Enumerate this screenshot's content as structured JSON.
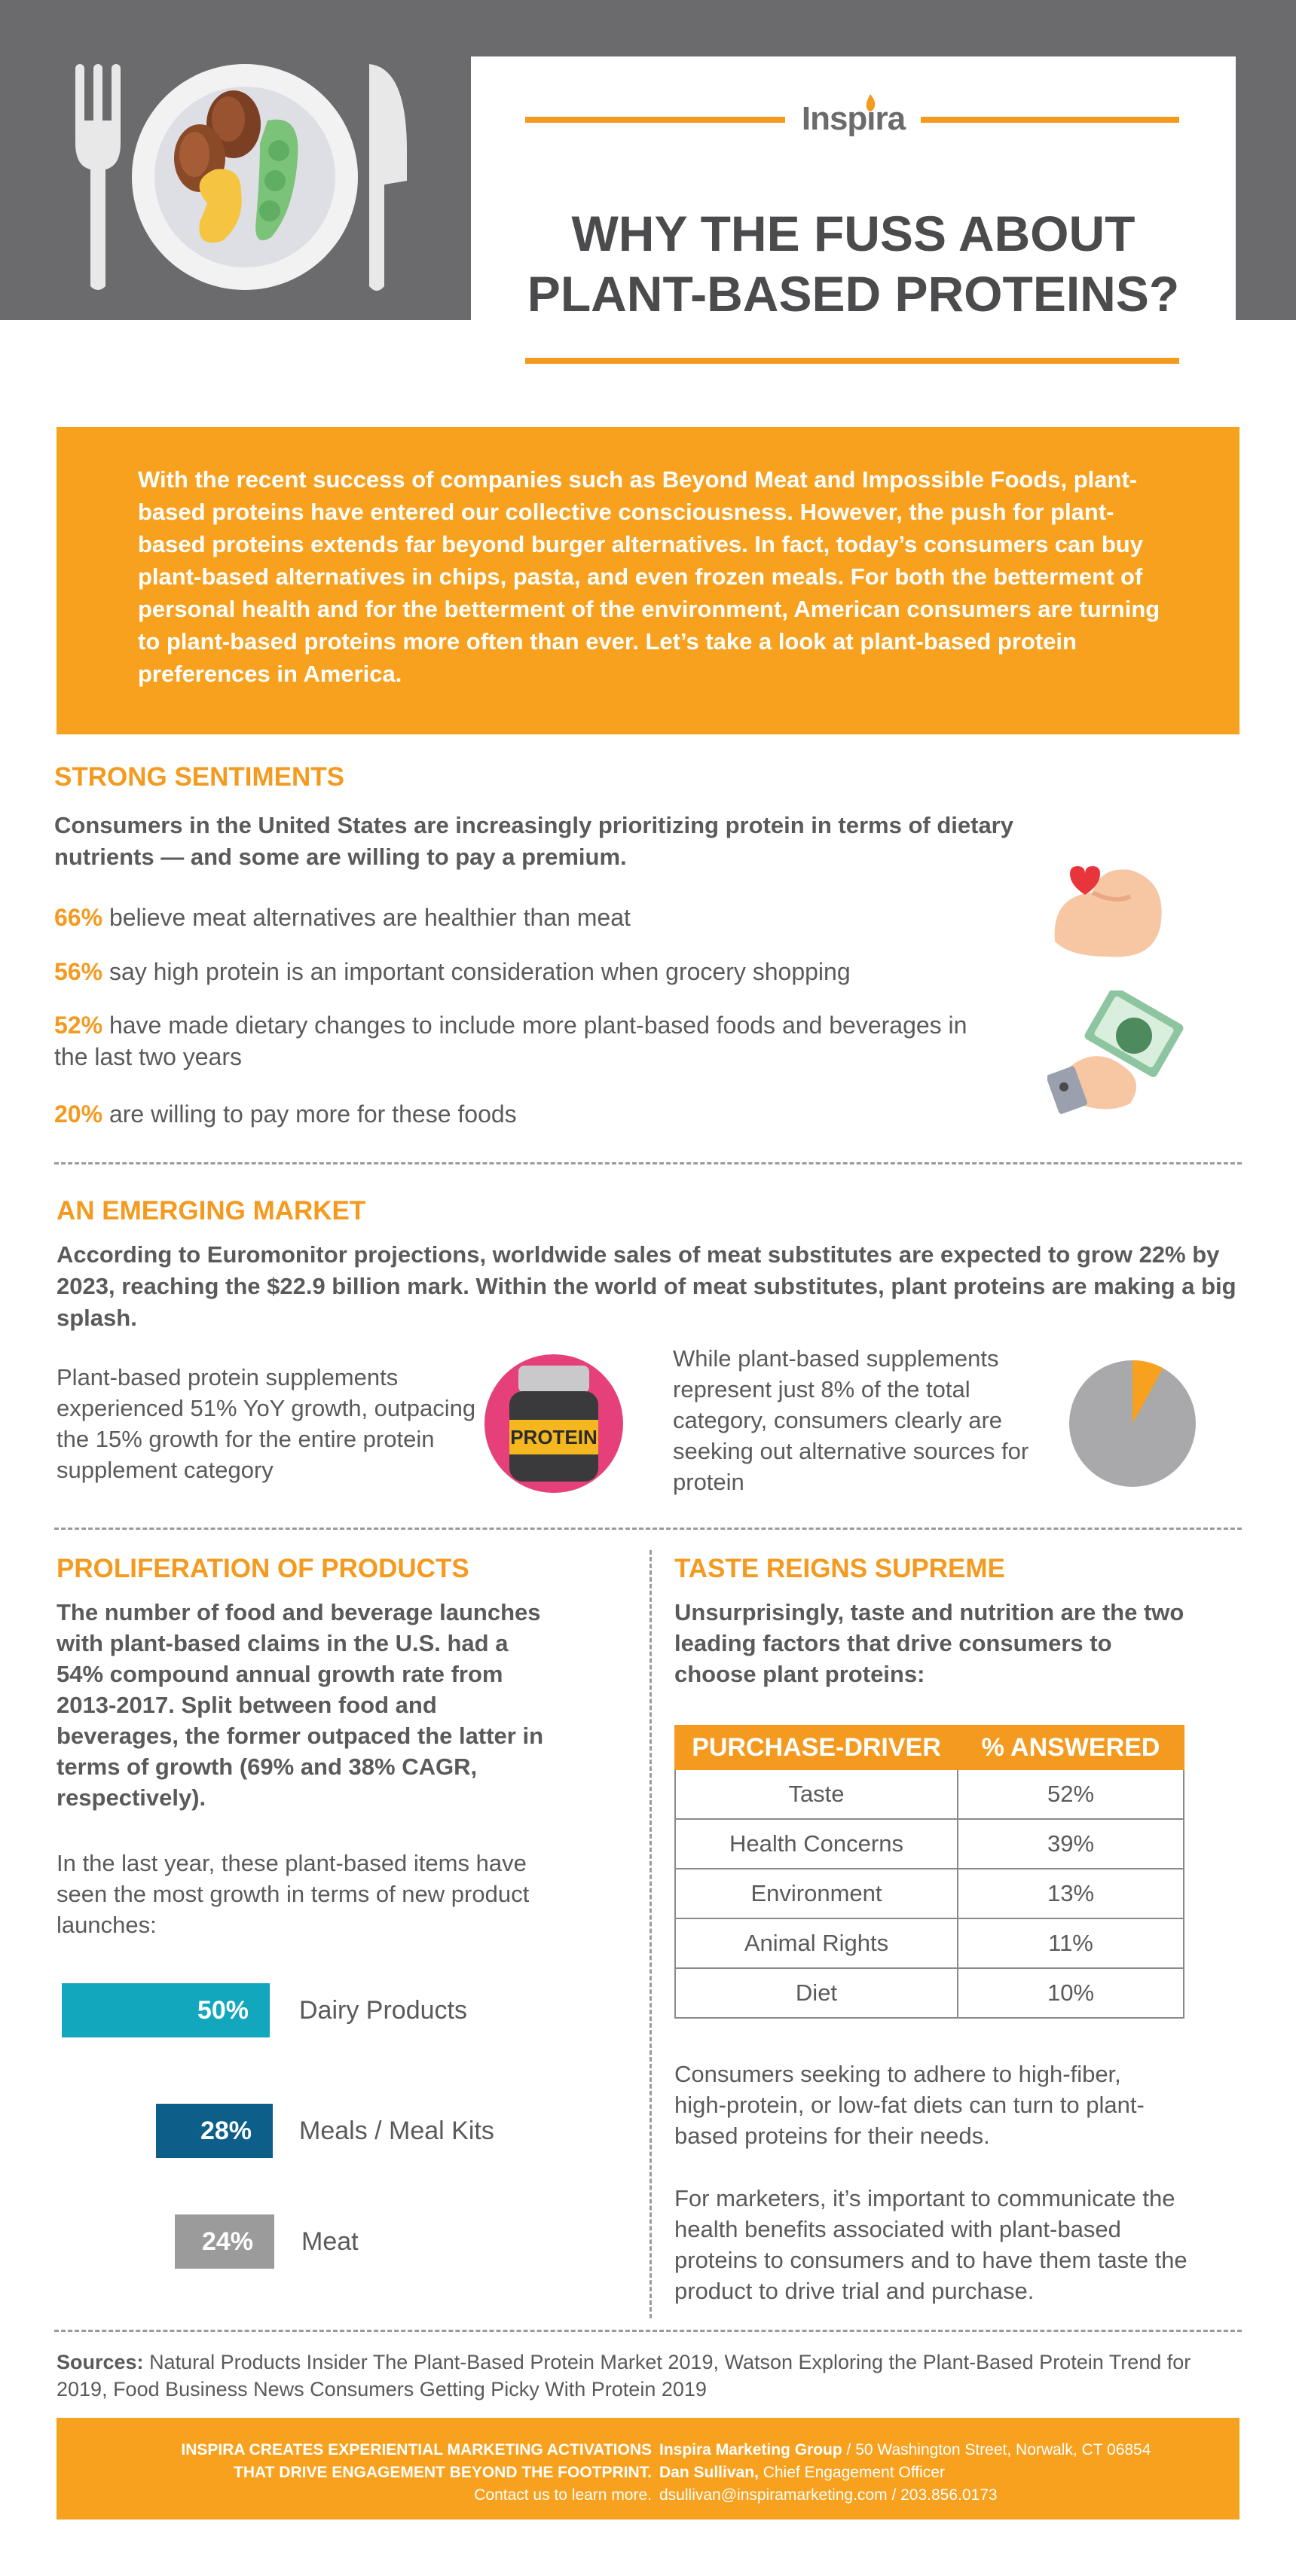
{
  "brand": {
    "name": "Inspira"
  },
  "title": "WHY THE FUSS ABOUT PLANT-BASED PROTEINS?",
  "intro": "With the recent success of companies such as Beyond Meat and Impossible Foods, plant-based proteins have entered our collective consciousness. However, the push for plant-based proteins extends far beyond burger alternatives. In fact, today’s consumers can buy plant-based alternatives in chips, pasta, and even frozen meals. For both the betterment of personal health and for the betterment of the environment, American consumers are turning to plant-based proteins more often than ever. Let’s take a look at plant-based protein preferences in America.",
  "sentiments": {
    "heading": "STRONG SENTIMENTS",
    "lead": "Consumers in the United States are increasingly prioritizing protein in terms of dietary nutrients — and some are willing to pay a premium.",
    "stats": [
      {
        "pct": "66%",
        "text": "believe meat alternatives are healthier than meat"
      },
      {
        "pct": "56%",
        "text": "say high protein is an important consideration when grocery shopping"
      },
      {
        "pct": "52%",
        "text": "have made dietary changes to include more plant-based foods and beverages in the last two years"
      },
      {
        "pct": "20%",
        "text": "are willing to pay more for these foods"
      }
    ]
  },
  "market": {
    "heading": "AN EMERGING MARKET",
    "lead": "According to Euromonitor projections, worldwide sales of meat substitutes are expected to grow 22% by 2023, reaching the $22.9 billion mark. Within the world of meat substitutes, plant proteins are making a big splash.",
    "left_text": "Plant-based protein supplements experienced 51% YoY growth, outpacing the 15% growth for the entire protein supplement category",
    "jar_label": "PROTEIN",
    "right_text": "While plant-based supplements represent just 8% of the total category, consumers clearly are seeking out alternative sources for protein",
    "pie_share": 0.08
  },
  "proliferation": {
    "heading": "PROLIFERATION OF PRODUCTS",
    "lead": "The number of food and beverage launches with plant-based claims in the U.S. had a 54% compound annual growth rate from 2013-2017. Split between food and beverages, the former outpaced the latter in terms of growth (69% and 38% CAGR, respectively).",
    "body": "In the last year, these plant-based items have seen the most growth in terms of new product launches:",
    "bars": [
      {
        "value": "50%",
        "label": "Dairy Products",
        "color": "#12a7bc"
      },
      {
        "value": "28%",
        "label": "Meals / Meal Kits",
        "color": "#0d5f8a"
      },
      {
        "value": "24%",
        "label": "Meat",
        "color": "#9b9b9b"
      }
    ]
  },
  "taste": {
    "heading": "TASTE REIGNS SUPREME",
    "lead": "Unsurprisingly, taste and nutrition are the two leading factors that drive consumers to choose plant proteins:",
    "table": {
      "headers": [
        "PURCHASE-DRIVER",
        "% ANSWERED"
      ],
      "rows": [
        [
          "Taste",
          "52%"
        ],
        [
          "Health Concerns",
          "39%"
        ],
        [
          "Environment",
          "13%"
        ],
        [
          "Animal Rights",
          "11%"
        ],
        [
          "Diet",
          "10%"
        ]
      ]
    },
    "para1": "Consumers seeking to adhere to high-fiber, high-protein, or low-fat diets can turn to plant-based proteins for their needs.",
    "para2": "For marketers, it’s important to communicate the health benefits associated with plant-based proteins to consumers and to have them taste the product to drive trial and purchase."
  },
  "sources": {
    "label": "Sources:",
    "text": "Natural Products Insider The Plant-Based Protein Market 2019,  Watson Exploring the Plant-Based Protein Trend for 2019, Food Business News Consumers Getting Picky With Protein 2019"
  },
  "footer": {
    "tagline1": "INSPIRA CREATES EXPERIENTIAL MARKETING ACTIVATIONS",
    "tagline2": "THAT DRIVE ENGAGEMENT BEYOND THE FOOTPRINT.",
    "cta": "Contact us to learn more.",
    "company": "Inspira Marketing Group",
    "address": " / 50 Washington Street, Norwalk, CT 06854",
    "person": "Dan Sullivan,",
    "role": " Chief Engagement Officer",
    "contact": "dsullivan@inspiramarketing.com / 203.856.0173"
  },
  "colors": {
    "orange": "#f39a1f",
    "gray": "#6b6b6d",
    "text": "#5a5a5a"
  }
}
